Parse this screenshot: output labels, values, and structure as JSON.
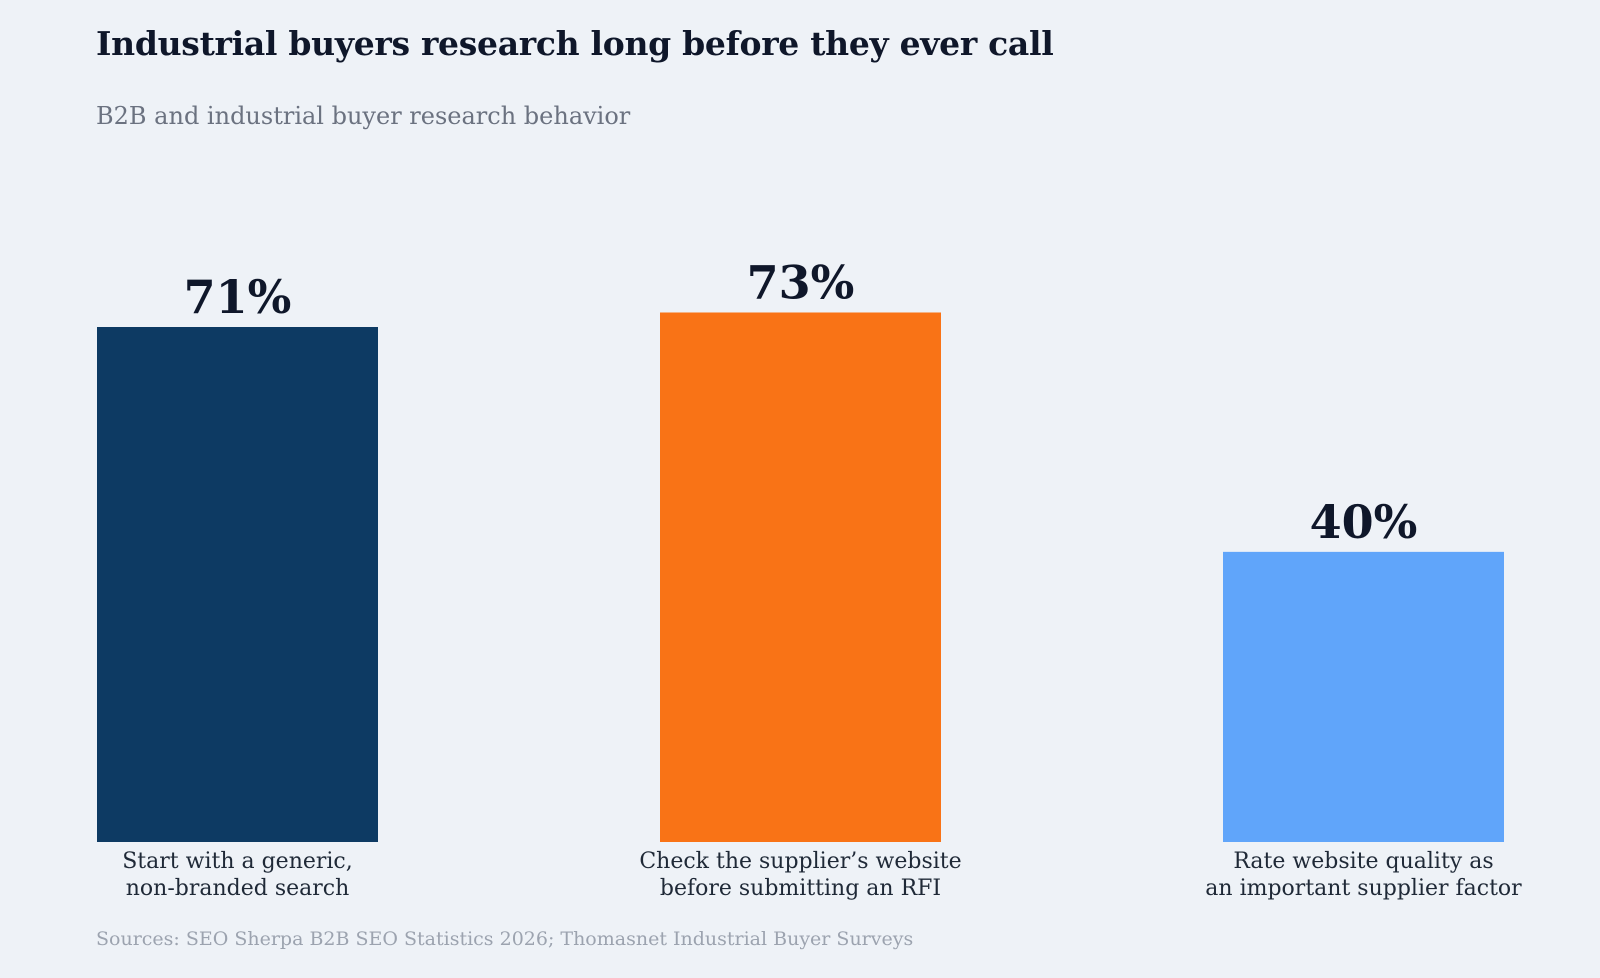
{
  "title": "Industrial buyers research long before they ever call",
  "subtitle": "B2B and industrial buyer research behavior",
  "source": "Sources: SEO Sherpa B2B SEO Statistics 2026; Thomasnet Industrial Buyer Surveys",
  "chart_data": {
    "type": "bar",
    "title": "Industrial buyers research long before they ever call",
    "subtitle": "B2B and industrial buyer research behavior",
    "categories": [
      [
        "Start with a generic,",
        "non-branded search"
      ],
      [
        "Check the supplier’s website",
        "before submitting an RFI"
      ],
      [
        "Rate website quality as",
        "an important supplier factor"
      ]
    ],
    "values": [
      71,
      73,
      40
    ],
    "value_labels": [
      "71%",
      "73%",
      "40%"
    ],
    "colors": [
      "#0d3a63",
      "#f97316",
      "#60a5fa"
    ],
    "ylim": [
      0,
      100
    ],
    "grid": false,
    "legend": "none"
  }
}
